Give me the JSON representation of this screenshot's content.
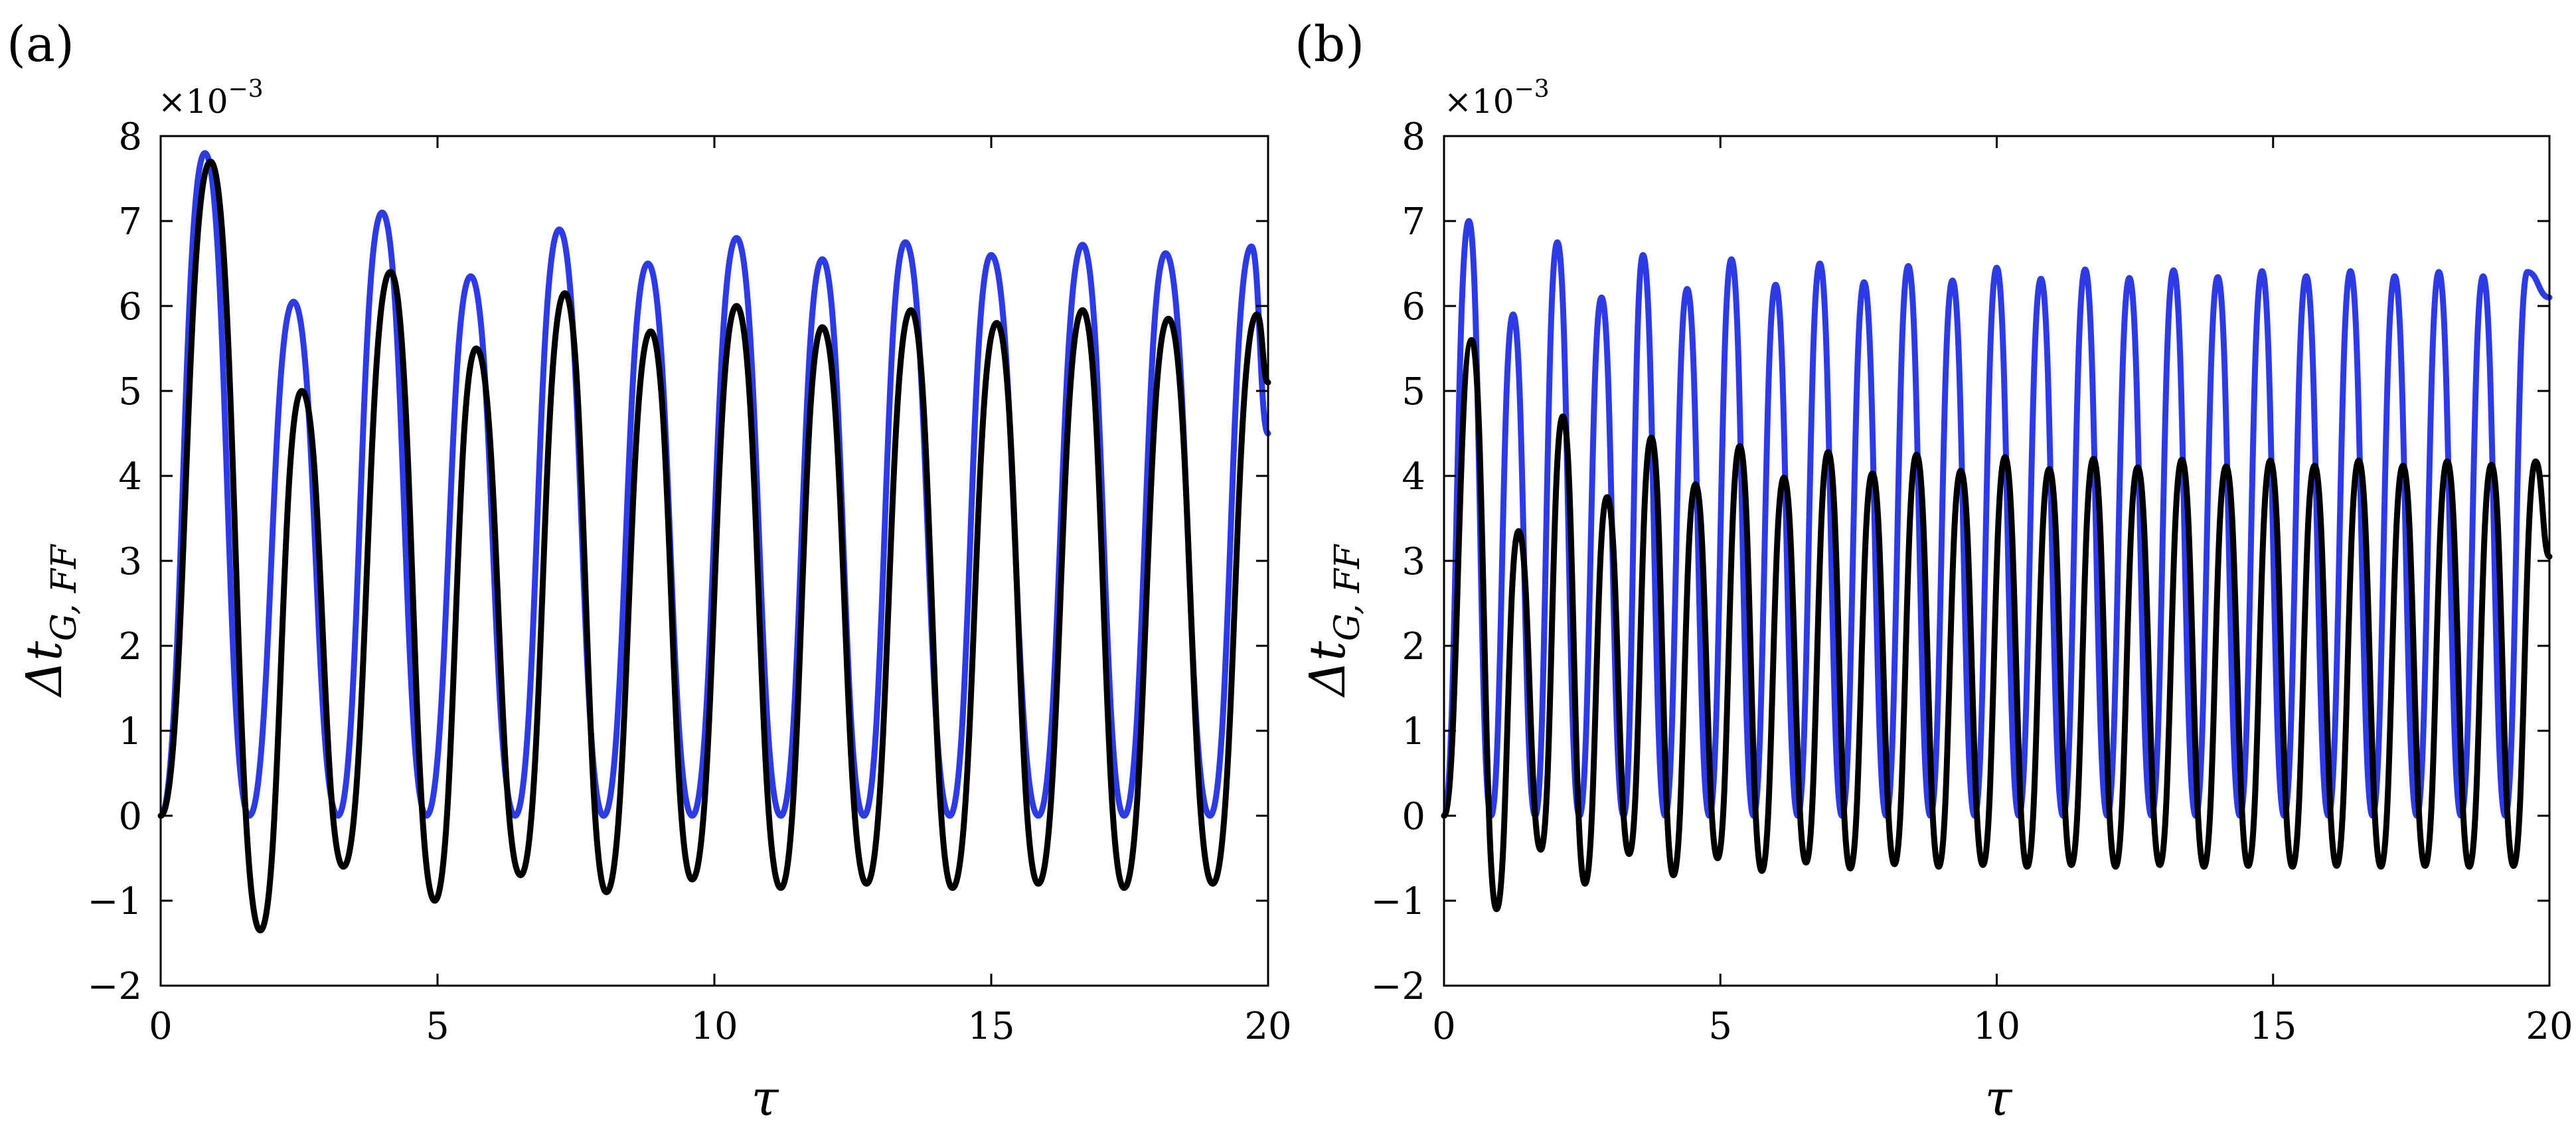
{
  "chart_data": [
    {
      "type": "line",
      "panel_label": "(a)",
      "xlabel": "τ",
      "ylabel_main": "Δt",
      "ylabel_sub": "G, FF",
      "y_multiplier": "×10",
      "y_multiplier_exp": "−3",
      "xlim": [
        0,
        20
      ],
      "ylim": [
        -2,
        8
      ],
      "xticks": [
        0,
        5,
        10,
        15,
        20
      ],
      "xtick_labels": [
        "0",
        "5",
        "10",
        "15",
        "20"
      ],
      "yticks": [
        -2,
        -1,
        0,
        1,
        2,
        3,
        4,
        5,
        6,
        7,
        8
      ],
      "ytick_labels": [
        "−2",
        "−1",
        "0",
        "1",
        "2",
        "3",
        "4",
        "5",
        "6",
        "7",
        "8"
      ],
      "grid": false,
      "series": [
        {
          "color": "#2d3be6",
          "x": [
            0,
            0.8,
            1.6,
            2.4,
            3.2,
            4.0,
            4.8,
            5.6,
            6.4,
            7.2,
            8.0,
            8.8,
            9.6,
            10.4,
            11.2,
            11.95,
            12.7,
            13.45,
            14.25,
            15.0,
            15.85,
            16.65,
            17.4,
            18.15,
            18.95,
            19.7,
            20.0
          ],
          "values": [
            0,
            7.8,
            0,
            6.05,
            0,
            7.1,
            0,
            6.35,
            0,
            6.9,
            0,
            6.5,
            0,
            6.8,
            0,
            6.55,
            0,
            6.75,
            0,
            6.6,
            0,
            6.72,
            0,
            6.62,
            0,
            6.7,
            4.5
          ]
        },
        {
          "color": "#000000",
          "x": [
            0,
            0.9,
            1.8,
            2.55,
            3.3,
            4.15,
            4.95,
            5.7,
            6.5,
            7.3,
            8.05,
            8.85,
            9.6,
            10.4,
            11.2,
            11.95,
            12.75,
            13.55,
            14.3,
            15.1,
            15.85,
            16.65,
            17.4,
            18.2,
            19.0,
            19.8,
            20.0
          ],
          "values": [
            0,
            7.7,
            -1.35,
            5.0,
            -0.6,
            6.4,
            -1.0,
            5.5,
            -0.7,
            6.15,
            -0.9,
            5.7,
            -0.75,
            6.0,
            -0.85,
            5.75,
            -0.8,
            5.95,
            -0.85,
            5.8,
            -0.8,
            5.95,
            -0.85,
            5.85,
            -0.8,
            5.9,
            5.1
          ]
        }
      ]
    },
    {
      "type": "line",
      "panel_label": "(b)",
      "xlabel": "τ",
      "ylabel_main": "Δt",
      "ylabel_sub": "G, FF",
      "y_multiplier": "×10",
      "y_multiplier_exp": "−3",
      "xlim": [
        0,
        20
      ],
      "ylim": [
        -2,
        8
      ],
      "xticks": [
        0,
        5,
        10,
        15,
        20
      ],
      "xtick_labels": [
        "0",
        "5",
        "10",
        "15",
        "20"
      ],
      "yticks": [
        -2,
        -1,
        0,
        1,
        2,
        3,
        4,
        5,
        6,
        7,
        8
      ],
      "ytick_labels": [
        "−2",
        "−1",
        "0",
        "1",
        "2",
        "3",
        "4",
        "5",
        "6",
        "7",
        "8"
      ],
      "grid": false,
      "series": [
        {
          "color": "#2d3be6",
          "x": [
            0,
            0.45,
            0.85,
            1.25,
            1.65,
            2.05,
            2.45,
            2.85,
            3.25,
            3.6,
            4.0,
            4.4,
            4.8,
            5.2,
            5.6,
            6.0,
            6.4,
            6.8,
            7.2,
            7.6,
            8.0,
            8.4,
            8.8,
            9.2,
            9.6,
            10.0,
            10.4,
            10.8,
            11.2,
            11.6,
            12.0,
            12.4,
            12.8,
            13.2,
            13.6,
            14.0,
            14.4,
            14.8,
            15.2,
            15.6,
            16.0,
            16.4,
            16.8,
            17.2,
            17.6,
            18.0,
            18.4,
            18.8,
            19.2,
            19.6,
            20.0
          ],
          "values": [
            0,
            7.0,
            0,
            5.9,
            0,
            6.75,
            0,
            6.1,
            0,
            6.6,
            0,
            6.2,
            0,
            6.55,
            0,
            6.25,
            0,
            6.5,
            0,
            6.28,
            0,
            6.47,
            0,
            6.3,
            0,
            6.45,
            0,
            6.32,
            0,
            6.43,
            0,
            6.33,
            0,
            6.42,
            0,
            6.34,
            0,
            6.41,
            0,
            6.35,
            0,
            6.41,
            0,
            6.35,
            0,
            6.4,
            0,
            6.35,
            0,
            6.4,
            6.1
          ]
        },
        {
          "color": "#000000",
          "x": [
            0,
            0.5,
            0.95,
            1.35,
            1.75,
            2.15,
            2.55,
            2.95,
            3.35,
            3.75,
            4.15,
            4.55,
            4.95,
            5.35,
            5.75,
            6.15,
            6.55,
            6.95,
            7.35,
            7.75,
            8.15,
            8.55,
            8.95,
            9.35,
            9.75,
            10.15,
            10.55,
            10.95,
            11.35,
            11.75,
            12.15,
            12.55,
            12.95,
            13.35,
            13.75,
            14.15,
            14.55,
            14.95,
            15.35,
            15.75,
            16.15,
            16.55,
            16.95,
            17.35,
            17.75,
            18.15,
            18.55,
            18.95,
            19.35,
            19.75,
            20.0
          ],
          "values": [
            0,
            5.6,
            -1.1,
            3.35,
            -0.4,
            4.7,
            -0.8,
            3.75,
            -0.45,
            4.45,
            -0.7,
            3.9,
            -0.5,
            4.35,
            -0.65,
            3.98,
            -0.55,
            4.28,
            -0.62,
            4.03,
            -0.57,
            4.25,
            -0.6,
            4.06,
            -0.58,
            4.22,
            -0.6,
            4.08,
            -0.58,
            4.2,
            -0.6,
            4.1,
            -0.58,
            4.19,
            -0.6,
            4.11,
            -0.59,
            4.18,
            -0.6,
            4.12,
            -0.59,
            4.18,
            -0.6,
            4.12,
            -0.59,
            4.17,
            -0.6,
            4.13,
            -0.59,
            4.17,
            3.05
          ]
        }
      ]
    }
  ]
}
